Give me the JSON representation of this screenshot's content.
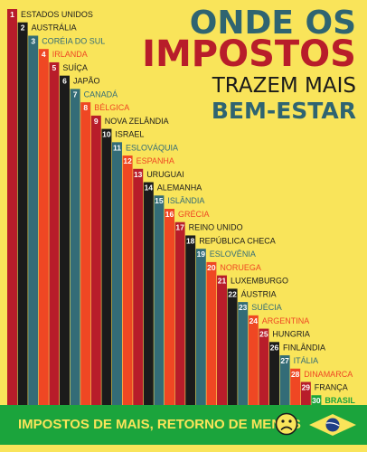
{
  "title": {
    "line1": "ONDE OS",
    "line2": "IMPOSTOS",
    "line3": "TRAZEM MAIS",
    "line4": "BEM-ESTAR"
  },
  "footer": {
    "text": "IMPOSTOS DE MAIS, RETORNO DE MENOS",
    "sad_icon": "sad-face-icon",
    "flag_icon": "brazil-flag-icon"
  },
  "colors": {
    "background": "#f9e45a",
    "dark": "#1b1b1b",
    "teal": "#336c77",
    "red": "#b81d2a",
    "orange": "#ef4723",
    "maroon": "#5e0d1a",
    "green": "#1ba43c",
    "title_teal": "#2f6471"
  },
  "chart_data": {
    "type": "bar",
    "series": [
      {
        "name": "",
        "values": [
          1,
          2,
          3,
          4,
          5,
          6,
          7,
          8,
          9,
          10,
          11,
          12,
          13,
          14,
          15,
          16,
          17,
          18,
          19,
          20,
          21,
          22,
          23,
          24,
          25,
          26,
          27,
          28,
          29,
          30
        ]
      }
    ],
    "categories": [
      "ESTADOS UNIDOS",
      "AUSTRÁLIA",
      "CORÉIA DO SUL",
      "IRLANDA",
      "SUÍÇA",
      "JAPÃO",
      "CANADÁ",
      "BÉLGICA",
      "NOVA ZELÂNDIA",
      "ISRAEL",
      "ESLOVÁQUIA",
      "ESPANHA",
      "URUGUAI",
      "ALEMANHA",
      "ISLÂNDIA",
      "GRÉCIA",
      "REINO UNIDO",
      "REPÚBLICA CHECA",
      "ESLOVÊNIA",
      "NORUEGA",
      "LUXEMBURGO",
      "ÁUSTRIA",
      "SUÉCIA",
      "ARGENTINA",
      "HUNGRIA",
      "FINLÂNDIA",
      "ITÁLIA",
      "DINAMARCA",
      "FRANÇA",
      "BRASIL"
    ],
    "ranks": [
      "1",
      "2",
      "3",
      "4",
      "5",
      "6",
      "7",
      "8",
      "9",
      "10",
      "11",
      "12",
      "13",
      "14",
      "15",
      "16",
      "17",
      "18",
      "19",
      "20",
      "21",
      "22",
      "23",
      "24",
      "25",
      "26",
      "27",
      "28",
      "29",
      "30"
    ],
    "bar_colors": [
      "red",
      "dark",
      "teal",
      "orange",
      "red",
      "dark",
      "teal",
      "orange",
      "red",
      "dark",
      "teal",
      "orange",
      "red",
      "dark",
      "teal",
      "orange",
      "red",
      "dark",
      "teal",
      "orange",
      "red",
      "dark",
      "teal",
      "orange",
      "red",
      "dark",
      "teal",
      "orange",
      "red",
      "green"
    ]
  }
}
